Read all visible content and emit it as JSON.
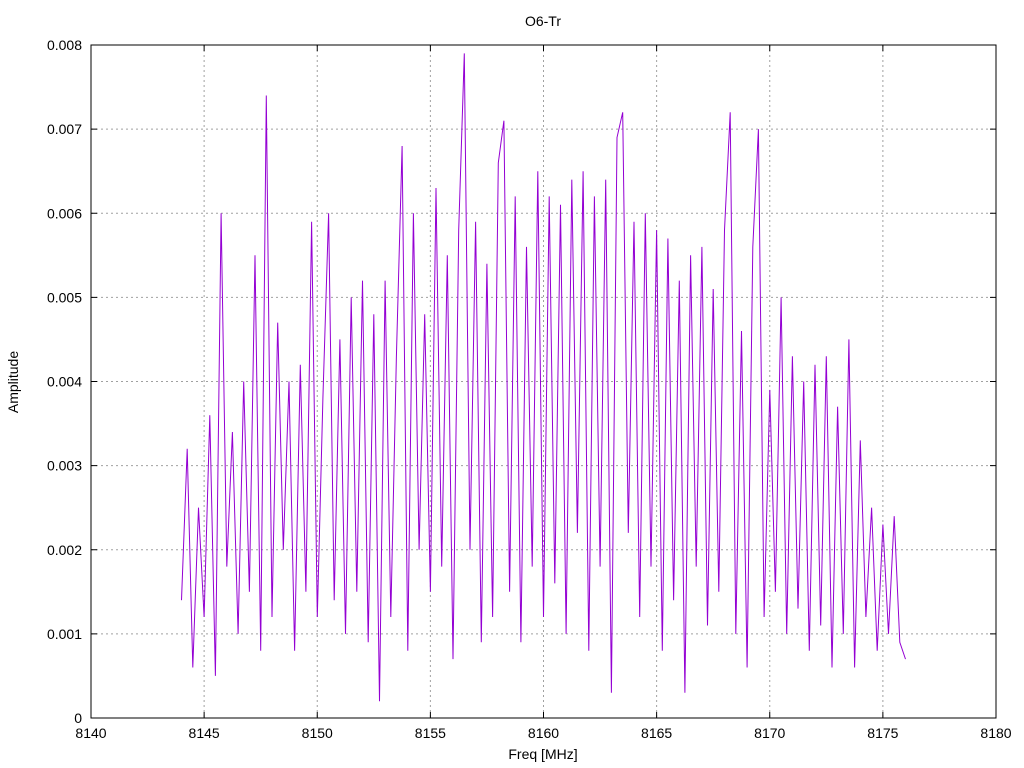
{
  "chart_data": {
    "type": "line",
    "title": "O6-Tr",
    "xlabel": "Freq [MHz]",
    "ylabel": "Amplitude",
    "xlim": [
      8140,
      8180
    ],
    "ylim": [
      0,
      0.008
    ],
    "grid": true,
    "x_ticks": [
      "8140",
      "8145",
      "8150",
      "8155",
      "8160",
      "8165",
      "8170",
      "8175",
      "8180"
    ],
    "y_ticks": [
      "0",
      "0.001",
      "0.002",
      "0.003",
      "0.004",
      "0.005",
      "0.006",
      "0.007",
      "0.008"
    ],
    "series": [
      {
        "name": "O6-Tr",
        "color": "#9400d3",
        "x_start": 8144.0,
        "x_step": 0.25,
        "values": [
          0.0014,
          0.0032,
          0.0006,
          0.0025,
          0.0012,
          0.0036,
          0.0005,
          0.006,
          0.0018,
          0.0034,
          0.001,
          0.004,
          0.0015,
          0.0055,
          0.0008,
          0.0074,
          0.0012,
          0.0047,
          0.002,
          0.004,
          0.0008,
          0.0042,
          0.0015,
          0.0059,
          0.0012,
          0.0038,
          0.006,
          0.0014,
          0.0045,
          0.001,
          0.005,
          0.0015,
          0.0052,
          0.0009,
          0.0048,
          0.0002,
          0.0052,
          0.0012,
          0.0043,
          0.0068,
          0.0008,
          0.006,
          0.002,
          0.0048,
          0.0015,
          0.0063,
          0.0018,
          0.0055,
          0.0007,
          0.0058,
          0.0079,
          0.002,
          0.0059,
          0.0009,
          0.0054,
          0.0012,
          0.0066,
          0.0071,
          0.0015,
          0.0062,
          0.0009,
          0.0056,
          0.0018,
          0.0065,
          0.0012,
          0.0062,
          0.0016,
          0.0061,
          0.001,
          0.0064,
          0.0022,
          0.0065,
          0.0008,
          0.0062,
          0.0018,
          0.0064,
          0.0003,
          0.0069,
          0.0072,
          0.0022,
          0.0059,
          0.0012,
          0.006,
          0.0018,
          0.0058,
          0.0008,
          0.0057,
          0.0014,
          0.0052,
          0.0003,
          0.0055,
          0.0018,
          0.0056,
          0.0011,
          0.0051,
          0.0015,
          0.0058,
          0.0072,
          0.001,
          0.0046,
          0.0006,
          0.0056,
          0.007,
          0.0012,
          0.0039,
          0.0015,
          0.005,
          0.001,
          0.0043,
          0.0013,
          0.004,
          0.0008,
          0.0042,
          0.0011,
          0.0043,
          0.0006,
          0.0037,
          0.001,
          0.0045,
          0.0006,
          0.0033,
          0.0012,
          0.0025,
          0.0008,
          0.0023,
          0.001,
          0.0024,
          0.0009,
          0.0007
        ]
      }
    ]
  }
}
